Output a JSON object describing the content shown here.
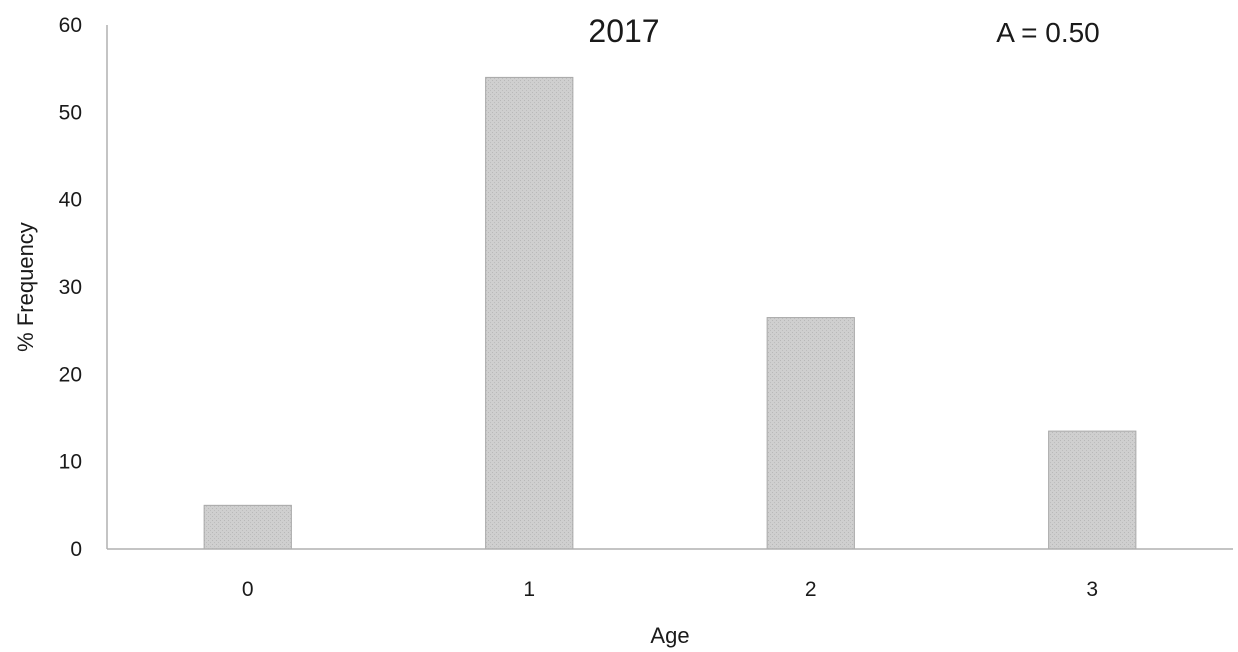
{
  "chart_data": {
    "type": "bar",
    "title": "2017",
    "annotation": "A = 0.50",
    "xlabel": "Age",
    "ylabel": "% Frequency",
    "categories": [
      "0",
      "1",
      "2",
      "3"
    ],
    "values": [
      5,
      54,
      26.5,
      13.5
    ],
    "ylim": [
      0,
      60
    ],
    "yticks": [
      "0",
      "10",
      "20",
      "30",
      "40",
      "50",
      "60"
    ],
    "grid": false,
    "legend": "none",
    "bar_color": "#c8c8c8",
    "bar_edge_color": "#a8a8a8",
    "axis_color": "#b0b0b0"
  }
}
